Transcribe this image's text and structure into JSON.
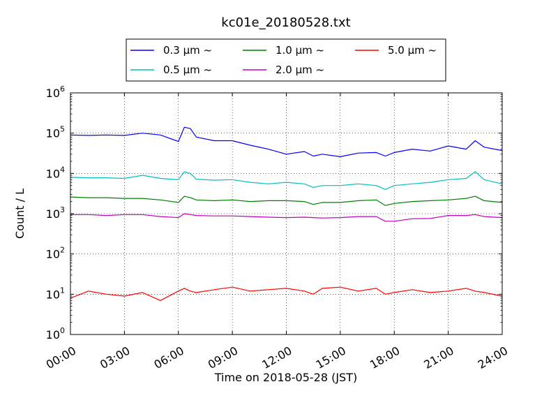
{
  "chart_data": {
    "type": "line",
    "title": "kc01e_20180528.txt",
    "xlabel": "Time on 2018-05-28 (JST)",
    "ylabel": "Count / L",
    "yscale": "log",
    "xlim": [
      "00:00",
      "24:00"
    ],
    "ylim": [
      1,
      1000000
    ],
    "xticks": [
      "00:00",
      "03:00",
      "06:00",
      "09:00",
      "12:00",
      "15:00",
      "18:00",
      "21:00",
      "24:00"
    ],
    "yticks": [
      {
        "base": "10",
        "exp": "0"
      },
      {
        "base": "10",
        "exp": "1"
      },
      {
        "base": "10",
        "exp": "2"
      },
      {
        "base": "10",
        "exp": "3"
      },
      {
        "base": "10",
        "exp": "4"
      },
      {
        "base": "10",
        "exp": "5"
      },
      {
        "base": "10",
        "exp": "6"
      }
    ],
    "grid": true,
    "legend_position": "top-center, above plot",
    "x": [
      "00:00",
      "01:00",
      "02:00",
      "03:00",
      "04:00",
      "05:00",
      "06:00",
      "06:20",
      "06:40",
      "07:00",
      "08:00",
      "09:00",
      "10:00",
      "11:00",
      "12:00",
      "13:00",
      "13:30",
      "14:00",
      "15:00",
      "16:00",
      "17:00",
      "17:30",
      "18:00",
      "19:00",
      "20:00",
      "21:00",
      "22:00",
      "22:30",
      "23:00",
      "24:00"
    ],
    "series": [
      {
        "name": "0.3 μm ~",
        "color": "#0000ff",
        "values": [
          90000,
          88000,
          90000,
          88000,
          100000,
          90000,
          62000,
          140000,
          130000,
          80000,
          65000,
          65000,
          50000,
          40000,
          30000,
          35000,
          27000,
          30000,
          26000,
          32000,
          33000,
          27000,
          33000,
          40000,
          36000,
          48000,
          40000,
          65000,
          45000,
          37000
        ]
      },
      {
        "name": "0.5 μm ~",
        "color": "#00bfbf",
        "values": [
          8000,
          7800,
          7800,
          7500,
          9000,
          7500,
          7000,
          11000,
          10000,
          7200,
          6800,
          7000,
          6000,
          5500,
          6000,
          5500,
          4500,
          5000,
          5000,
          5500,
          5000,
          4000,
          5000,
          5500,
          6000,
          7000,
          7500,
          11000,
          7000,
          5500
        ]
      },
      {
        "name": "1.0 μm ~",
        "color": "#008000",
        "values": [
          2600,
          2500,
          2500,
          2400,
          2400,
          2200,
          1900,
          2700,
          2500,
          2200,
          2100,
          2200,
          2000,
          2100,
          2100,
          2000,
          1700,
          1900,
          1900,
          2100,
          2200,
          1600,
          1800,
          2000,
          2100,
          2200,
          2400,
          2700,
          2100,
          1900
        ]
      },
      {
        "name": "2.0 μm ~",
        "color": "#bf00bf",
        "values": [
          950,
          950,
          900,
          950,
          950,
          850,
          800,
          1000,
          950,
          900,
          880,
          880,
          850,
          820,
          800,
          820,
          800,
          780,
          800,
          850,
          850,
          650,
          650,
          750,
          760,
          900,
          900,
          950,
          850,
          800
        ]
      },
      {
        "name": "5.0 μm ~",
        "color": "#ff0000",
        "values": [
          8,
          12,
          10,
          9,
          11,
          7,
          12,
          14,
          12,
          11,
          13,
          15,
          12,
          13,
          14,
          12,
          10,
          14,
          15,
          12,
          14,
          10,
          11,
          13,
          11,
          12,
          14,
          12,
          11,
          9
        ]
      }
    ]
  }
}
